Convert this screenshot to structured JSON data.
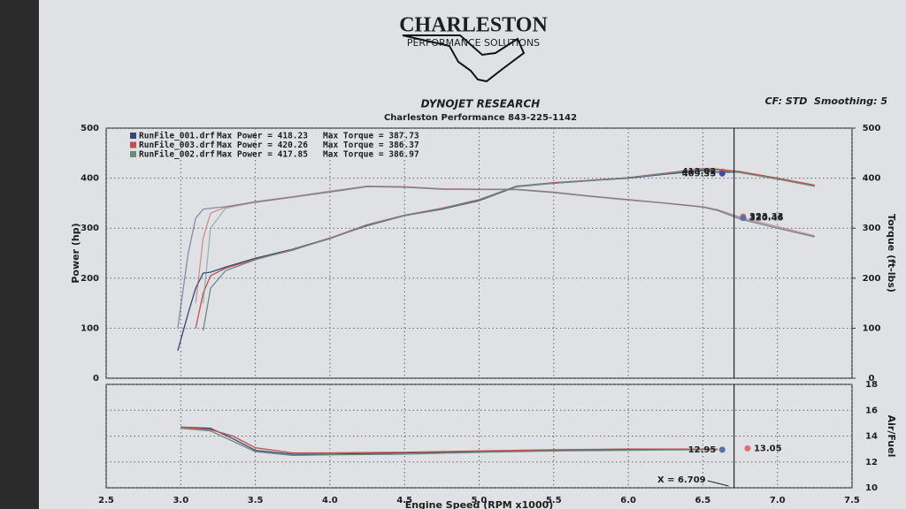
{
  "header": {
    "logo_title": "CHARLESTON",
    "logo_subtitle": "PERFORMANCE SOLUTIONS",
    "title": "DYNOJET RESEARCH",
    "subtitle": "Charleston Performance 843-225-1142",
    "settings": "CF: STD  Smoothing: 5"
  },
  "chart_data": [
    {
      "type": "line",
      "ylabel": "Power (hp)",
      "y2label": "Torque (ft-lbs)",
      "x": [
        2.98,
        3.05,
        3.1,
        3.15,
        3.2,
        3.3,
        3.5,
        3.75,
        4.0,
        4.25,
        4.5,
        4.75,
        5.0,
        5.25,
        5.5,
        5.75,
        6.0,
        6.25,
        6.5,
        6.6,
        6.75,
        7.0,
        7.25
      ],
      "xlim": [
        2.5,
        7.5
      ],
      "xticks": [
        2.5,
        3,
        3.5,
        4,
        4.5,
        5,
        5.5,
        6,
        6.5,
        7,
        7.5
      ],
      "ylim": [
        0,
        500
      ],
      "yticks": [
        0,
        100,
        200,
        300,
        400,
        500
      ],
      "y2lim": [
        0,
        500
      ],
      "y2ticks": [
        0,
        100,
        200,
        300,
        400,
        500
      ],
      "grid": true,
      "yaxis_position": "left",
      "series": [
        {
          "name": "RunFile_001.drf",
          "legend": "Max Power = 418.23",
          "legend2": "Max Torque = 387.73",
          "color": "#34477a",
          "values": [
            55,
            130,
            180,
            210,
            212,
            222,
            240,
            258,
            280,
            305,
            325,
            338,
            355,
            383,
            390,
            395,
            400,
            408,
            415,
            412,
            412,
            400,
            385
          ],
          "y2_values": [
            100,
            250,
            320,
            338,
            340,
            343,
            352,
            362,
            372,
            383,
            382,
            378,
            378,
            378,
            372,
            364,
            357,
            350,
            342,
            335,
            318,
            300,
            283
          ]
        },
        {
          "name": "RunFile_003.drf",
          "legend": "Max Power = 420.26",
          "legend2": "Max Torque = 386.37",
          "color": "#c0504d",
          "values": [
            null,
            null,
            100,
            170,
            205,
            220,
            238,
            256,
            280,
            307,
            326,
            340,
            357,
            384,
            391,
            396,
            401,
            410,
            419,
            418,
            413,
            400,
            386
          ],
          "y2_values": [
            null,
            null,
            150,
            280,
            330,
            342,
            353,
            363,
            374,
            384,
            383,
            379,
            378,
            377,
            371,
            364,
            357,
            350,
            343,
            337,
            322,
            303,
            285
          ]
        },
        {
          "name": "RunFile_002.drf",
          "legend": "Max Power = 417.85",
          "legend2": "Max Torque = 386.97",
          "color": "#6a8a7c",
          "values": [
            null,
            null,
            null,
            95,
            180,
            215,
            237,
            257,
            279,
            306,
            325,
            339,
            356,
            384,
            390,
            395,
            401,
            409,
            417,
            416,
            411,
            398,
            384
          ],
          "y2_values": [
            null,
            null,
            null,
            150,
            300,
            340,
            352,
            362,
            373,
            384,
            382,
            378,
            377,
            377,
            371,
            363,
            356,
            350,
            342,
            336,
            320,
            300,
            282
          ]
        }
      ],
      "annotations": [
        {
          "label": "413.02",
          "x": 6.63,
          "y": 413.02,
          "axis": "y",
          "color": "#e05050"
        },
        {
          "label": "409.35",
          "x": 6.63,
          "y": 409.35,
          "axis": "y",
          "color": "#3a4f9a"
        },
        {
          "label": "323.33",
          "x": 6.77,
          "y": 323.33,
          "axis": "y2",
          "color": "#e07070"
        },
        {
          "label": "320.46",
          "x": 6.77,
          "y": 320.46,
          "axis": "y2",
          "color": "#5a6fa8"
        }
      ],
      "cursor": {
        "x": 6.709
      }
    },
    {
      "type": "line",
      "xlabel": "Engine Speed (RPM x1000)",
      "ylabel": "Air/Fuel",
      "x": [
        3.0,
        3.2,
        3.35,
        3.5,
        3.75,
        4.0,
        4.5,
        5.0,
        5.5,
        6.0,
        6.5,
        6.6
      ],
      "xlim": [
        2.5,
        7.5
      ],
      "xticks": [
        2.5,
        {
          "value": 3,
          "label": "3.0"
        },
        3.5,
        {
          "value": 4,
          "label": "4.0"
        },
        4.5,
        {
          "value": 5,
          "label": "5.0"
        },
        5.5,
        {
          "value": 6,
          "label": "6.0"
        },
        6.5,
        {
          "value": 7,
          "label": "7.0"
        },
        7.5
      ],
      "ylim": [
        10,
        18
      ],
      "yticks": [
        10,
        12,
        14,
        16,
        18
      ],
      "grid": true,
      "yaxis_position": "right",
      "series": [
        {
          "color": "#34477a",
          "values": [
            14.7,
            14.6,
            13.8,
            12.9,
            12.6,
            12.6,
            12.7,
            12.8,
            12.9,
            12.95,
            12.95,
            12.95
          ]
        },
        {
          "color": "#c0504d",
          "values": [
            14.7,
            14.5,
            14.0,
            13.1,
            12.7,
            12.7,
            12.75,
            12.85,
            12.95,
            13.0,
            13.0,
            13.0
          ]
        },
        {
          "color": "#6a8a7c",
          "values": [
            14.6,
            14.4,
            13.6,
            12.8,
            12.5,
            12.55,
            12.6,
            12.75,
            12.85,
            12.9,
            12.95,
            12.95
          ]
        }
      ],
      "annotations": [
        {
          "label": "12.95",
          "x": 6.63,
          "y": 12.95,
          "axis": "y",
          "color": "#5a6fa8"
        },
        {
          "label": "13.05",
          "x": 6.8,
          "y": 13.05,
          "axis": "y2",
          "color": "#e07070"
        }
      ],
      "cursor": {
        "x": 6.709,
        "label": "X = 6.709"
      }
    }
  ]
}
